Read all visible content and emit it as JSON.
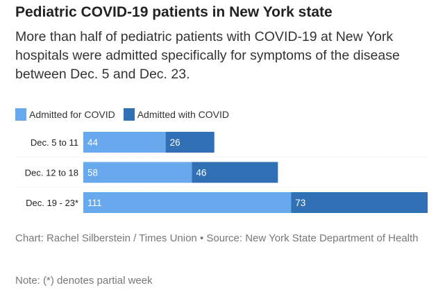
{
  "title": "Pediatric COVID-19 patients in New York state",
  "subtitle": "More than half of pediatric patients with COVID-19 at New York hospitals were admitted specifically for symptoms of the disease between Dec. 5 and Dec. 23.",
  "footer": "Chart: Rachel Silberstein / Times Union • Source: New York State Department of Health",
  "note": "Note: (*) denotes partial week",
  "chart_data": {
    "type": "bar",
    "orientation": "horizontal",
    "stacked": true,
    "categories": [
      "Dec. 5 to 11",
      "Dec. 12 to 18",
      "Dec. 19 - 23*"
    ],
    "series": [
      {
        "name": "Admitted for COVID",
        "color": "#68a8ec",
        "values": [
          44,
          58,
          111
        ]
      },
      {
        "name": "Admitted with COVID",
        "color": "#3270b5",
        "values": [
          26,
          46,
          73
        ]
      }
    ],
    "xlim": [
      0,
      184
    ],
    "legend": "top-left"
  }
}
